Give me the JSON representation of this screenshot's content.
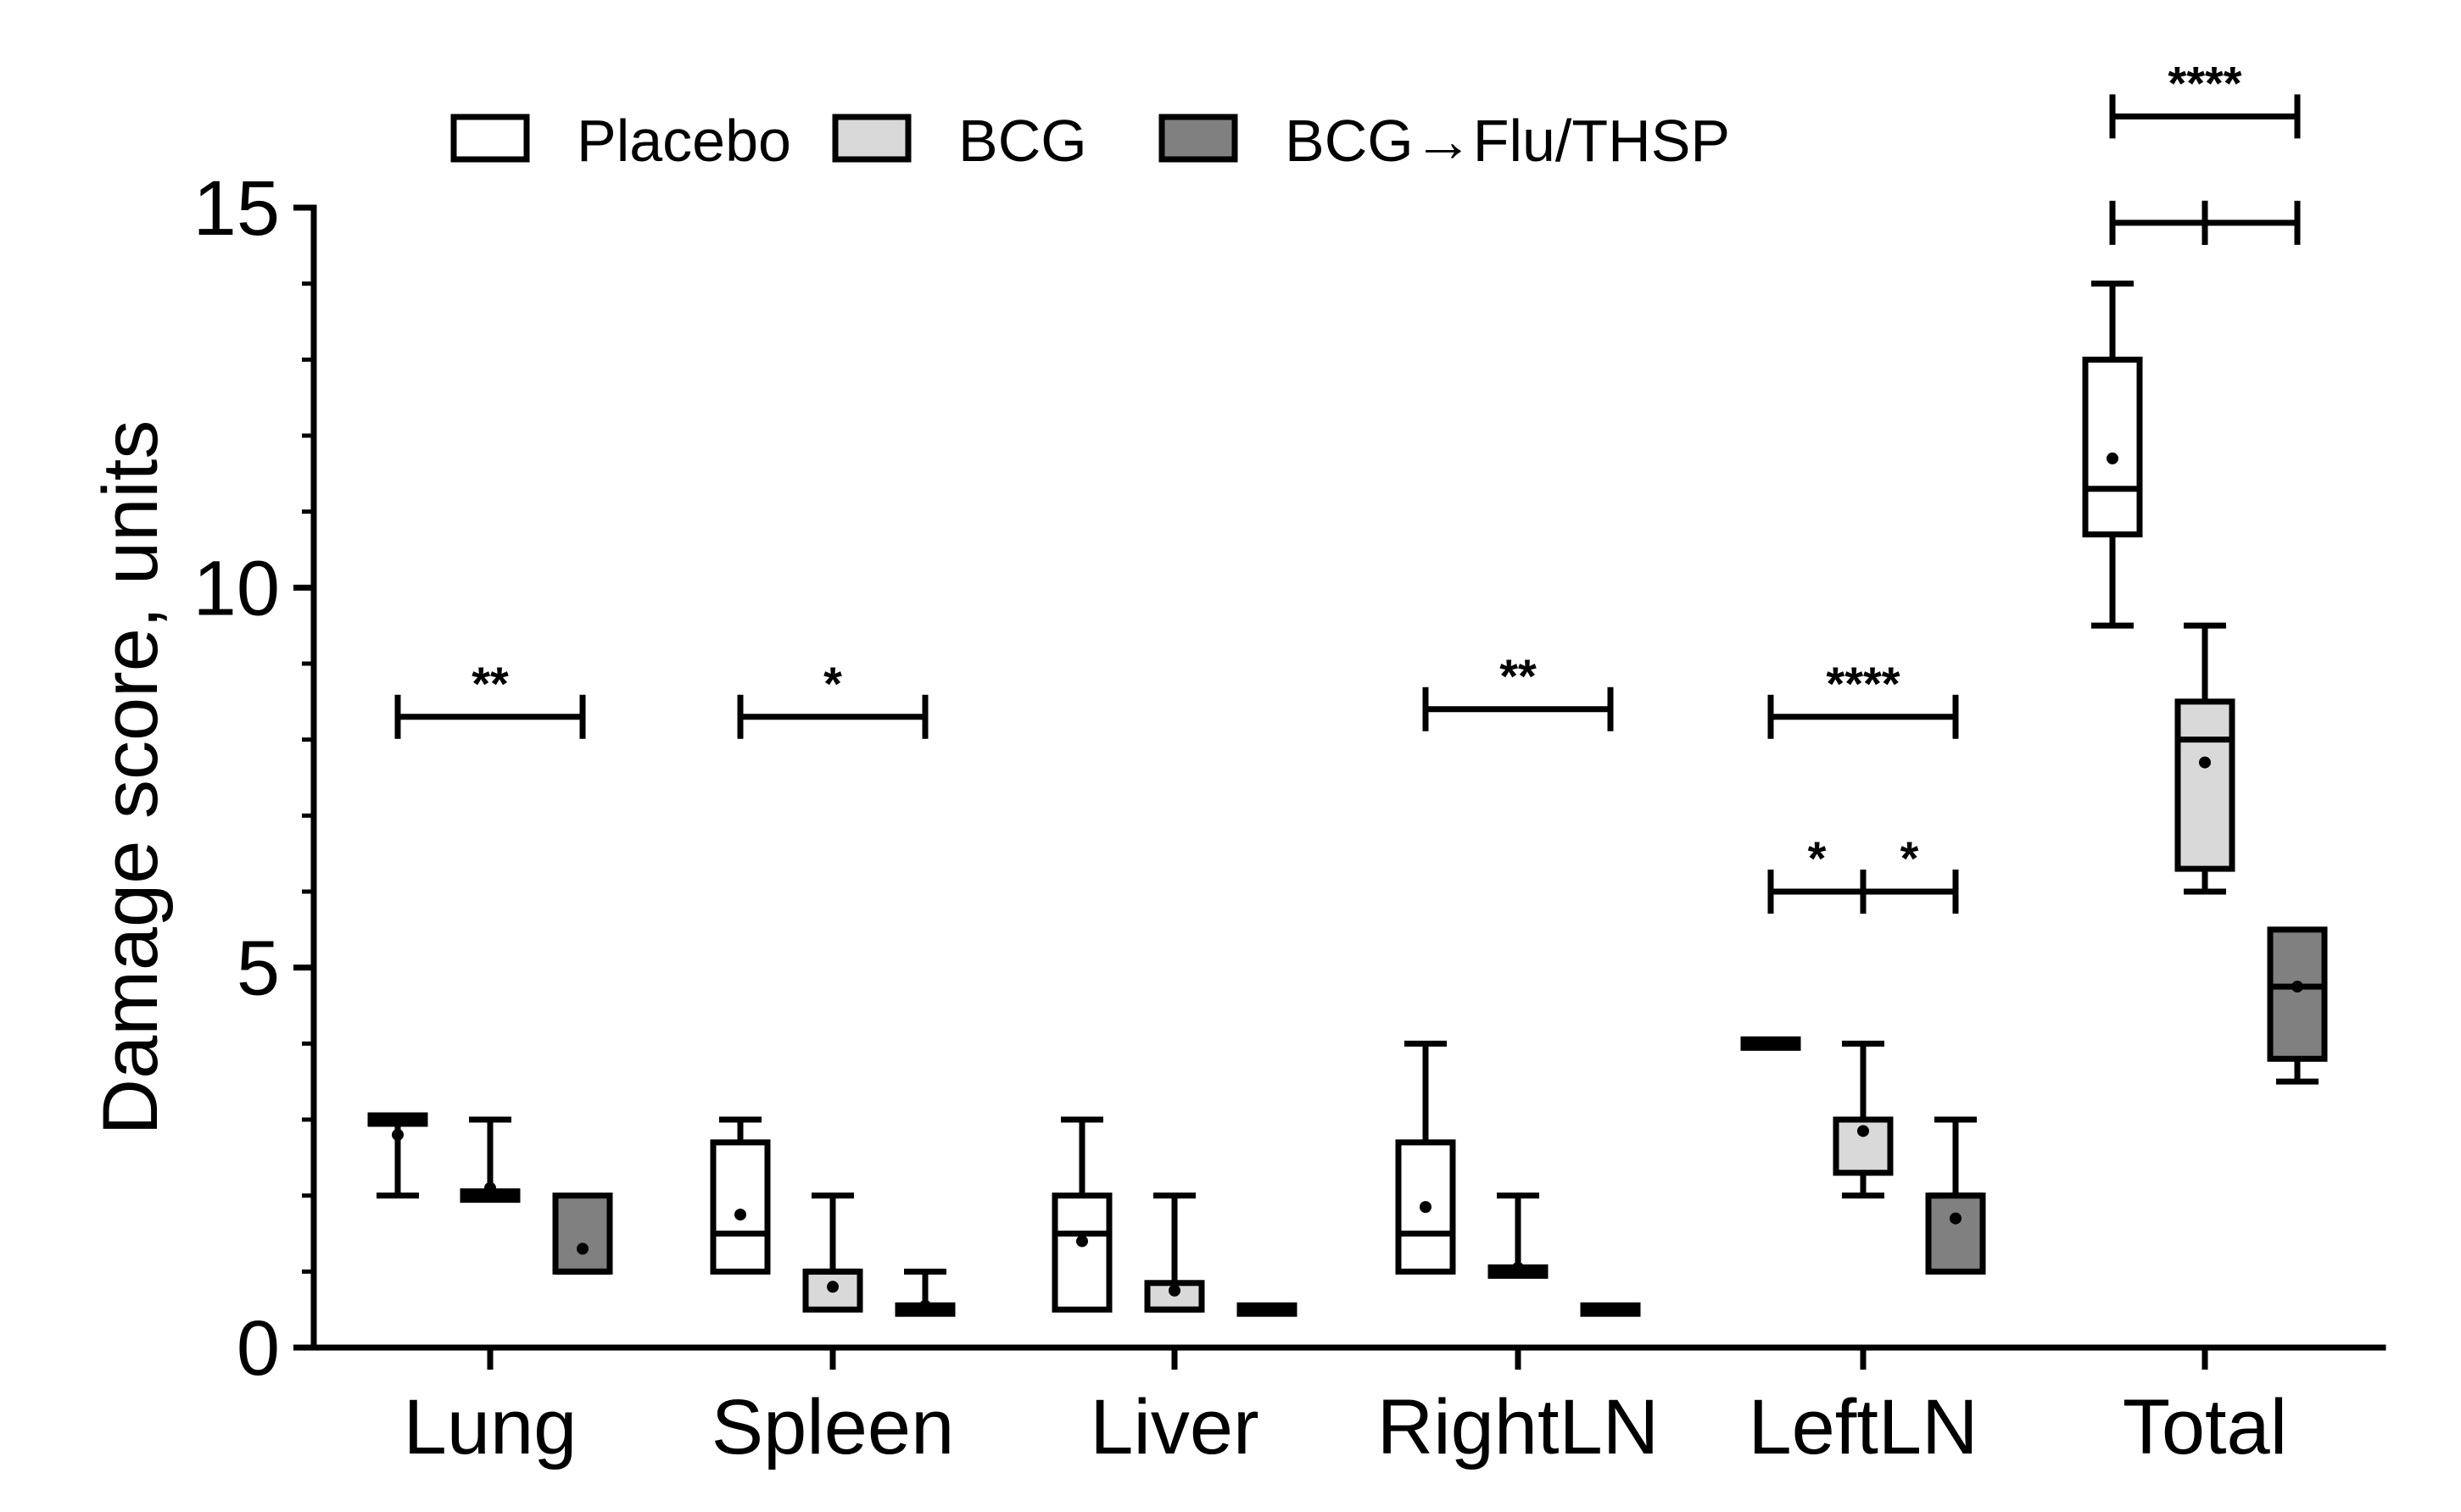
{
  "chart_data": {
    "type": "box",
    "ylabel": "Damage score, units",
    "ylim": [
      0,
      15
    ],
    "yticks": [
      0,
      5,
      10,
      15
    ],
    "categories": [
      "Lung",
      "Spleen",
      "Liver",
      "RightLN",
      "LeftLN",
      "Total"
    ],
    "series": [
      {
        "name": "Placebo",
        "color": "#ffffff"
      },
      {
        "name": "BCG",
        "color": "#d9d9d9"
      },
      {
        "name": "BCG→Flu/THSP",
        "color": "#808080"
      }
    ],
    "boxes": [
      {
        "category": "Lung",
        "series": "Placebo",
        "min": 2,
        "q1": 3,
        "median": 3,
        "q3": 3,
        "max": 3,
        "mean": 2.8
      },
      {
        "category": "Lung",
        "series": "BCG",
        "min": 2,
        "q1": 2,
        "median": 2,
        "q3": 2,
        "max": 3,
        "mean": 2.1
      },
      {
        "category": "Lung",
        "series": "BCG→Flu/THSP",
        "min": 1,
        "q1": 1,
        "median": 1,
        "q3": 2,
        "max": 2,
        "mean": 1.3
      },
      {
        "category": "Spleen",
        "series": "Placebo",
        "min": 1,
        "q1": 1,
        "median": 1.5,
        "q3": 2.7,
        "max": 3,
        "mean": 1.75
      },
      {
        "category": "Spleen",
        "series": "BCG",
        "min": 0.5,
        "q1": 0.5,
        "median": 1,
        "q3": 1,
        "max": 2,
        "mean": 0.8
      },
      {
        "category": "Spleen",
        "series": "BCG→Flu/THSP",
        "min": 0.5,
        "q1": 0.5,
        "median": 0.5,
        "q3": 0.5,
        "max": 1,
        "mean": 0.55
      },
      {
        "category": "Liver",
        "series": "Placebo",
        "min": 0.5,
        "q1": 0.5,
        "median": 1.5,
        "q3": 2,
        "max": 3,
        "mean": 1.4
      },
      {
        "category": "Liver",
        "series": "BCG",
        "min": 0.5,
        "q1": 0.5,
        "median": 0.5,
        "q3": 0.85,
        "max": 2,
        "mean": 0.75
      },
      {
        "category": "Liver",
        "series": "BCG→Flu/THSP",
        "min": 0.5,
        "q1": 0.5,
        "median": 0.5,
        "q3": 0.5,
        "max": 0.5,
        "mean": 0.5
      },
      {
        "category": "RightLN",
        "series": "Placebo",
        "min": 1,
        "q1": 1,
        "median": 1.5,
        "q3": 2.7,
        "max": 4,
        "mean": 1.85
      },
      {
        "category": "RightLN",
        "series": "BCG",
        "min": 1,
        "q1": 1,
        "median": 1,
        "q3": 1,
        "max": 2,
        "mean": 1.05
      },
      {
        "category": "RightLN",
        "series": "BCG→Flu/THSP",
        "min": 0.5,
        "q1": 0.5,
        "median": 0.5,
        "q3": 0.5,
        "max": 0.5,
        "mean": 0.5
      },
      {
        "category": "LeftLN",
        "series": "Placebo",
        "min": 4,
        "q1": 4,
        "median": 4,
        "q3": 4,
        "max": 4,
        "mean": 4
      },
      {
        "category": "LeftLN",
        "series": "BCG",
        "min": 2,
        "q1": 2.3,
        "median": 3,
        "q3": 3,
        "max": 4,
        "mean": 2.85
      },
      {
        "category": "LeftLN",
        "series": "BCG→Flu/THSP",
        "min": 1,
        "q1": 1,
        "median": 2,
        "q3": 2,
        "max": 3,
        "mean": 1.7
      },
      {
        "category": "Total",
        "series": "Placebo",
        "min": 9.5,
        "q1": 10.7,
        "median": 11.3,
        "q3": 13,
        "max": 14,
        "mean": 11.7
      },
      {
        "category": "Total",
        "series": "BCG",
        "min": 6,
        "q1": 6.3,
        "median": 8,
        "q3": 8.5,
        "max": 9.5,
        "mean": 7.7
      },
      {
        "category": "Total",
        "series": "BCG→Flu/THSP",
        "min": 3.5,
        "q1": 3.8,
        "median": 4.75,
        "q3": 5.5,
        "max": 5.5,
        "mean": 4.75
      }
    ],
    "significance": [
      {
        "category": "Lung",
        "from": "Placebo",
        "to": "BCG→Flu/THSP",
        "y": 8.3,
        "label": "**"
      },
      {
        "category": "Spleen",
        "from": "Placebo",
        "to": "BCG→Flu/THSP",
        "y": 8.3,
        "label": "*"
      },
      {
        "category": "RightLN",
        "from": "Placebo",
        "to": "BCG→Flu/THSP",
        "y": 8.4,
        "label": "**"
      },
      {
        "category": "LeftLN",
        "from": "Placebo",
        "to": "BCG→Flu/THSP",
        "y": 8.3,
        "label": "****"
      },
      {
        "category": "LeftLN",
        "from": "Placebo",
        "to": "BCG",
        "y": 6,
        "label": "*"
      },
      {
        "category": "LeftLN",
        "from": "BCG",
        "to": "BCG→Flu/THSP",
        "y": 6,
        "label": "*"
      },
      {
        "category": "Total",
        "from": "Placebo",
        "to": "BCG→Flu/THSP",
        "y": 16.2,
        "label": "****"
      },
      {
        "category": "Total",
        "from": "Placebo",
        "to": "BCG",
        "y": 14.8,
        "label": ""
      },
      {
        "category": "Total",
        "from": "BCG",
        "to": "BCG→Flu/THSP",
        "y": 14.8,
        "label": ""
      }
    ],
    "legend_position": "top"
  }
}
